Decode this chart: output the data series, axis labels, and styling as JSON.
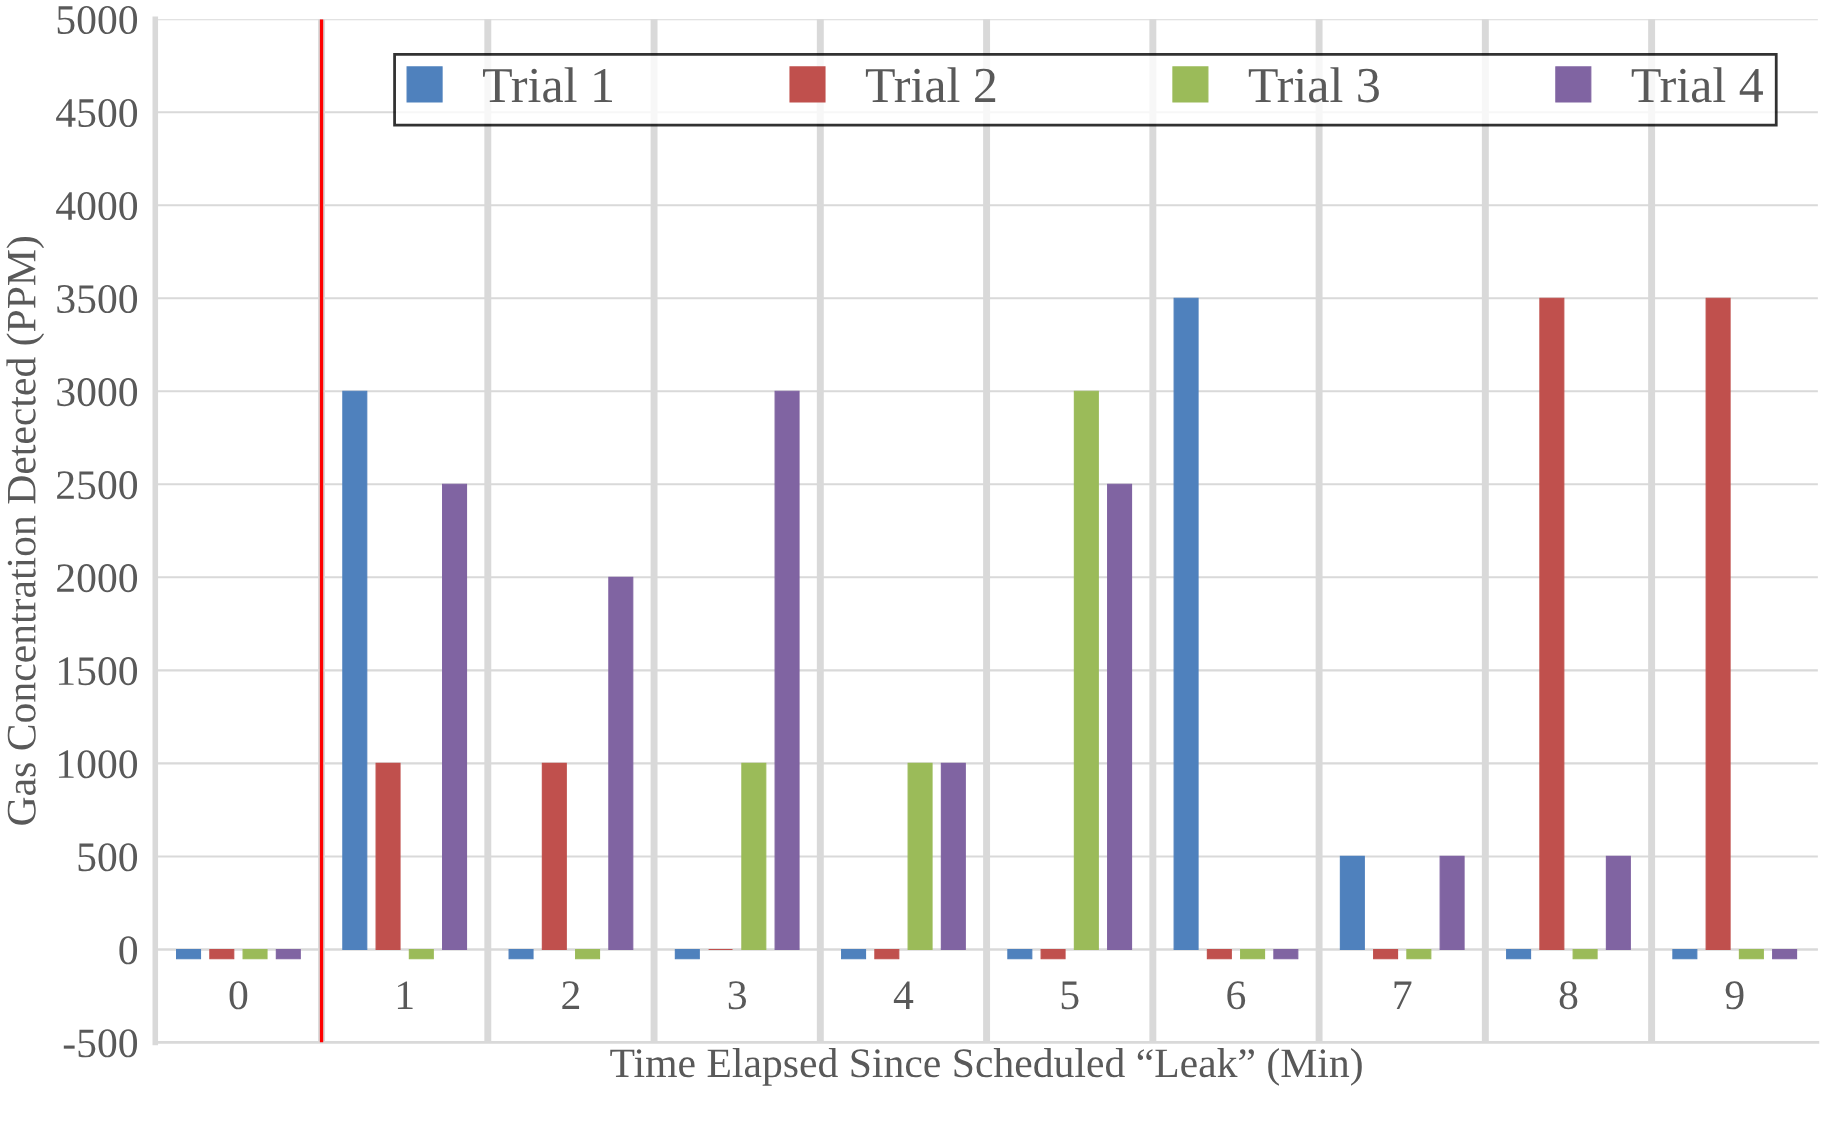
{
  "chart_data": {
    "type": "bar",
    "xlabel": "Time Elapsed Since Scheduled “Leak” (Min)",
    "ylabel": "Gas Concentration Detected (PPM)",
    "categories": [
      "0",
      "1",
      "2",
      "3",
      "4",
      "5",
      "6",
      "7",
      "8",
      "9"
    ],
    "series": [
      {
        "name": "Trial 1",
        "color": "#4f81bd",
        "values": [
          -50,
          3000,
          -50,
          -50,
          -50,
          -50,
          3500,
          500,
          -50,
          -50
        ]
      },
      {
        "name": "Trial 2",
        "color": "#c0504d",
        "values": [
          -50,
          1000,
          1000,
          0,
          -50,
          -50,
          -50,
          -50,
          3500,
          3500
        ]
      },
      {
        "name": "Trial 3",
        "color": "#9bbb59",
        "values": [
          -50,
          -50,
          -50,
          1000,
          1000,
          3000,
          -50,
          -50,
          -50,
          -50
        ]
      },
      {
        "name": "Trial 4",
        "color": "#8064a2",
        "values": [
          -50,
          2500,
          2000,
          3000,
          1000,
          2500,
          -50,
          500,
          500,
          -50
        ]
      }
    ],
    "ylim": [
      -500,
      5000
    ],
    "yticks": [
      -500,
      0,
      500,
      1000,
      1500,
      2000,
      2500,
      3000,
      3500,
      4000,
      4500,
      5000
    ],
    "grid": true,
    "legend": "top right"
  }
}
